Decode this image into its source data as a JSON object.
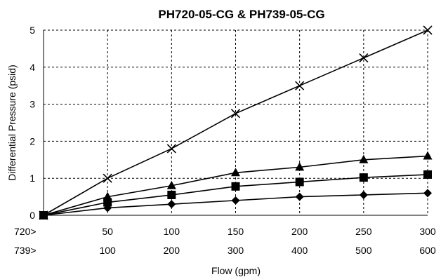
{
  "chart_data": {
    "type": "line",
    "title": "PH720-05-CG & PH739-05-CG",
    "xlabel": "Flow (gpm)",
    "ylabel": "Differential Pressure (psid)",
    "x_row_labels": [
      "720>",
      "739>"
    ],
    "x_720": [
      0,
      50,
      100,
      150,
      200,
      250,
      300
    ],
    "x_739": [
      0,
      100,
      200,
      300,
      400,
      500,
      600
    ],
    "x_tick_labels_720": [
      "50",
      "100",
      "150",
      "200",
      "250",
      "300"
    ],
    "x_tick_labels_739": [
      "100",
      "200",
      "300",
      "400",
      "500",
      "600"
    ],
    "xlim": [
      0,
      300
    ],
    "ylim": [
      0,
      5
    ],
    "yticks": [
      0,
      1,
      2,
      3,
      4,
      5
    ],
    "grid": true,
    "series": [
      {
        "marker": "diamond",
        "color": "#000000",
        "values": [
          0,
          0.2,
          0.3,
          0.4,
          0.5,
          0.55,
          0.6
        ]
      },
      {
        "marker": "square",
        "color": "#000000",
        "values": [
          0,
          0.35,
          0.55,
          0.78,
          0.9,
          1.02,
          1.1
        ]
      },
      {
        "marker": "triangle",
        "color": "#000000",
        "values": [
          0,
          0.5,
          0.8,
          1.15,
          1.3,
          1.5,
          1.6
        ]
      },
      {
        "marker": "x",
        "color": "#000000",
        "values": [
          0,
          1.0,
          1.8,
          2.75,
          3.5,
          4.25,
          5.0
        ]
      }
    ]
  }
}
